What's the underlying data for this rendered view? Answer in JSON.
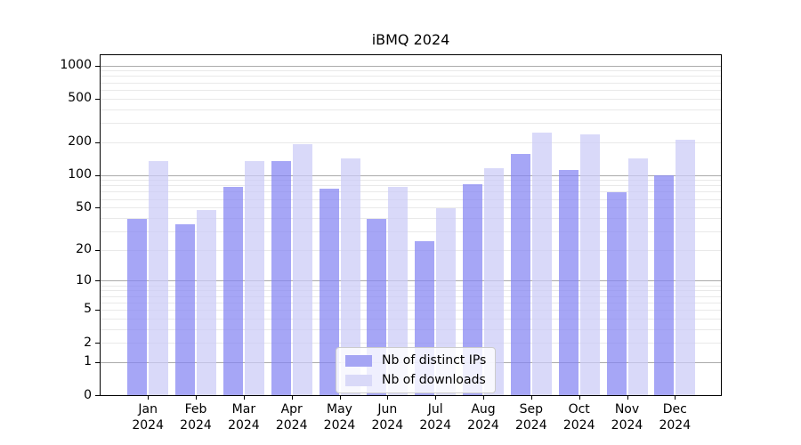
{
  "title": "iBMQ 2024",
  "chart_data": {
    "type": "bar",
    "title": "iBMQ 2024",
    "categories": [
      "Jan 2024",
      "Feb 2024",
      "Mar 2024",
      "Apr 2024",
      "May 2024",
      "Jun 2024",
      "Jul 2024",
      "Aug 2024",
      "Sep 2024",
      "Oct 2024",
      "Nov 2024",
      "Dec 2024"
    ],
    "series": [
      {
        "name": "Nb of distinct IPs",
        "color": "#a5a5f4",
        "fill": "rgba(132,132,243,0.72)",
        "values": [
          39,
          35,
          77,
          134,
          75,
          39,
          24,
          82,
          155,
          111,
          69,
          99
        ]
      },
      {
        "name": "Nb of downloads",
        "color": "#d9d9f8",
        "fill": "rgba(203,203,247,0.72)",
        "values": [
          135,
          47,
          135,
          191,
          142,
          78,
          49,
          115,
          245,
          234,
          142,
          210
        ]
      }
    ],
    "yscale": "log10(value+1)",
    "yticks": [
      0,
      1,
      2,
      5,
      10,
      20,
      50,
      100,
      200,
      500,
      1000
    ],
    "ylim": [
      0,
      1240
    ],
    "xlabel": "",
    "ylabel": "",
    "grid": true,
    "legend_position": "inside-bottom-center",
    "colors": {
      "major_gridline": "#ababab",
      "minor_gridline": "#e9e9e9",
      "axis_frame": "#000000",
      "text": "#000000"
    }
  }
}
